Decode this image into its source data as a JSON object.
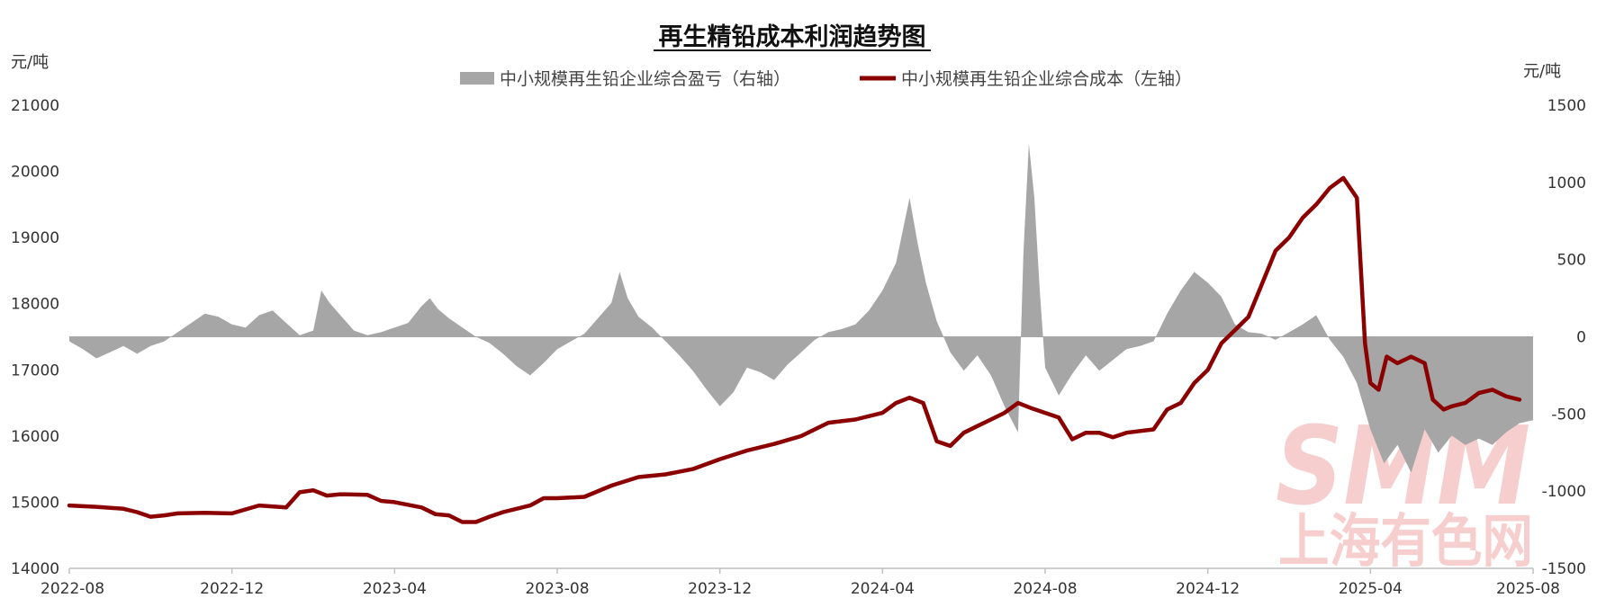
{
  "chart_data": {
    "type": "line+area",
    "title": "再生精铅成本利润趋势图",
    "left_unit": "元/吨",
    "right_unit": "元/吨",
    "x_ticks": [
      "2022-08",
      "2022-12",
      "2023-04",
      "2023-08",
      "2023-12",
      "2024-04",
      "2024-08",
      "2024-12",
      "2025-04",
      "2025-08"
    ],
    "left_axis": {
      "min": 14000,
      "max": 21000,
      "ticks": [
        "14000",
        "15000",
        "16000",
        "17000",
        "18000",
        "19000",
        "20000",
        "21000"
      ]
    },
    "right_axis": {
      "min": -1500,
      "max": 1500,
      "ticks": [
        "-1500",
        "-1000",
        "-500",
        "0",
        "500",
        "1000",
        "1500"
      ]
    },
    "grid": false,
    "legend_position": "top",
    "series": [
      {
        "name": "中小规模再生铅企业综合盈亏（右轴）",
        "kind": "area",
        "axis": "right",
        "color": "#a6a6a6",
        "points": [
          [
            0,
            -30
          ],
          [
            0.5,
            -80
          ],
          [
            1,
            -140
          ],
          [
            1.5,
            -100
          ],
          [
            2,
            -60
          ],
          [
            2.5,
            -110
          ],
          [
            3,
            -60
          ],
          [
            3.5,
            -30
          ],
          [
            4,
            30
          ],
          [
            4.5,
            90
          ],
          [
            5,
            150
          ],
          [
            5.5,
            130
          ],
          [
            6,
            80
          ],
          [
            6.5,
            60
          ],
          [
            7,
            140
          ],
          [
            7.5,
            170
          ],
          [
            8,
            90
          ],
          [
            8.5,
            10
          ],
          [
            9,
            40
          ],
          [
            9.3,
            300
          ],
          [
            9.6,
            220
          ],
          [
            10,
            140
          ],
          [
            10.5,
            40
          ],
          [
            11,
            10
          ],
          [
            11.5,
            30
          ],
          [
            12,
            60
          ],
          [
            12.5,
            90
          ],
          [
            13,
            200
          ],
          [
            13.3,
            250
          ],
          [
            13.6,
            180
          ],
          [
            14,
            120
          ],
          [
            14.5,
            60
          ],
          [
            15,
            0
          ],
          [
            15.5,
            -40
          ],
          [
            16,
            -110
          ],
          [
            16.5,
            -190
          ],
          [
            17,
            -250
          ],
          [
            17.5,
            -170
          ],
          [
            18,
            -80
          ],
          [
            18.5,
            -30
          ],
          [
            19,
            20
          ],
          [
            19.5,
            120
          ],
          [
            20,
            220
          ],
          [
            20.3,
            420
          ],
          [
            20.6,
            250
          ],
          [
            21,
            130
          ],
          [
            21.5,
            60
          ],
          [
            22,
            -30
          ],
          [
            22.5,
            -120
          ],
          [
            23,
            -220
          ],
          [
            23.5,
            -340
          ],
          [
            24,
            -450
          ],
          [
            24.5,
            -360
          ],
          [
            25,
            -200
          ],
          [
            25.5,
            -230
          ],
          [
            26,
            -280
          ],
          [
            26.5,
            -180
          ],
          [
            27,
            -100
          ],
          [
            27.5,
            -20
          ],
          [
            28,
            30
          ],
          [
            28.5,
            50
          ],
          [
            29,
            80
          ],
          [
            29.5,
            170
          ],
          [
            30,
            300
          ],
          [
            30.5,
            480
          ],
          [
            31,
            900
          ],
          [
            31.3,
            600
          ],
          [
            31.6,
            350
          ],
          [
            32,
            100
          ],
          [
            32.5,
            -100
          ],
          [
            33,
            -220
          ],
          [
            33.5,
            -120
          ],
          [
            34,
            -250
          ],
          [
            34.5,
            -450
          ],
          [
            35,
            -620
          ],
          [
            35.2,
            550
          ],
          [
            35.4,
            1250
          ],
          [
            35.6,
            900
          ],
          [
            35.8,
            300
          ],
          [
            36,
            -200
          ],
          [
            36.5,
            -380
          ],
          [
            37,
            -240
          ],
          [
            37.5,
            -120
          ],
          [
            38,
            -220
          ],
          [
            38.5,
            -150
          ],
          [
            39,
            -80
          ],
          [
            39.5,
            -60
          ],
          [
            40,
            -30
          ],
          [
            40.5,
            150
          ],
          [
            41,
            300
          ],
          [
            41.5,
            420
          ],
          [
            42,
            350
          ],
          [
            42.5,
            260
          ],
          [
            43,
            80
          ],
          [
            43.5,
            30
          ],
          [
            44,
            20
          ],
          [
            44.5,
            -20
          ],
          [
            45,
            30
          ],
          [
            45.5,
            80
          ],
          [
            46,
            140
          ],
          [
            46.5,
            -20
          ],
          [
            47,
            -130
          ],
          [
            47.5,
            -300
          ],
          [
            48,
            -600
          ],
          [
            48.5,
            -820
          ],
          [
            49,
            -700
          ],
          [
            49.5,
            -880
          ],
          [
            50,
            -600
          ],
          [
            50.5,
            -750
          ],
          [
            51,
            -640
          ],
          [
            51.5,
            -700
          ],
          [
            52,
            -660
          ],
          [
            52.5,
            -700
          ],
          [
            53,
            -620
          ],
          [
            53.5,
            -560
          ],
          [
            54,
            -540
          ]
        ]
      },
      {
        "name": "中小规模再生铅企业综合成本（左轴）",
        "kind": "line",
        "axis": "left",
        "color": "#8b0000",
        "points": [
          [
            0,
            14950
          ],
          [
            1,
            14930
          ],
          [
            2,
            14900
          ],
          [
            2.5,
            14850
          ],
          [
            3,
            14780
          ],
          [
            3.5,
            14800
          ],
          [
            4,
            14830
          ],
          [
            5,
            14840
          ],
          [
            6,
            14830
          ],
          [
            7,
            14950
          ],
          [
            8,
            14920
          ],
          [
            8.5,
            15150
          ],
          [
            9,
            15180
          ],
          [
            9.5,
            15100
          ],
          [
            10,
            15120
          ],
          [
            11,
            15110
          ],
          [
            11.5,
            15020
          ],
          [
            12,
            15000
          ],
          [
            13,
            14920
          ],
          [
            13.5,
            14820
          ],
          [
            14,
            14800
          ],
          [
            14.5,
            14700
          ],
          [
            15,
            14700
          ],
          [
            15.5,
            14780
          ],
          [
            16,
            14850
          ],
          [
            17,
            14950
          ],
          [
            17.5,
            15060
          ],
          [
            18,
            15060
          ],
          [
            19,
            15080
          ],
          [
            20,
            15250
          ],
          [
            21,
            15380
          ],
          [
            22,
            15420
          ],
          [
            23,
            15500
          ],
          [
            24,
            15650
          ],
          [
            25,
            15780
          ],
          [
            26,
            15880
          ],
          [
            27,
            16000
          ],
          [
            28,
            16200
          ],
          [
            29,
            16250
          ],
          [
            30,
            16350
          ],
          [
            30.5,
            16500
          ],
          [
            31,
            16580
          ],
          [
            31.5,
            16500
          ],
          [
            32,
            15920
          ],
          [
            32.5,
            15850
          ],
          [
            33,
            16050
          ],
          [
            33.5,
            16150
          ],
          [
            34,
            16250
          ],
          [
            34.5,
            16350
          ],
          [
            35,
            16500
          ],
          [
            35.5,
            16420
          ],
          [
            36,
            16350
          ],
          [
            36.5,
            16280
          ],
          [
            37,
            15950
          ],
          [
            37.5,
            16050
          ],
          [
            38,
            16050
          ],
          [
            38.5,
            15980
          ],
          [
            39,
            16050
          ],
          [
            40,
            16100
          ],
          [
            40.5,
            16400
          ],
          [
            41,
            16500
          ],
          [
            41.5,
            16800
          ],
          [
            42,
            17000
          ],
          [
            42.5,
            17400
          ],
          [
            43,
            17600
          ],
          [
            43.5,
            17800
          ],
          [
            44,
            18300
          ],
          [
            44.5,
            18800
          ],
          [
            45,
            19000
          ],
          [
            45.5,
            19300
          ],
          [
            46,
            19500
          ],
          [
            46.5,
            19750
          ],
          [
            47,
            19900
          ],
          [
            47.5,
            19600
          ],
          [
            47.8,
            17400
          ],
          [
            48,
            16800
          ],
          [
            48.3,
            16700
          ],
          [
            48.6,
            17200
          ],
          [
            49,
            17100
          ],
          [
            49.5,
            17200
          ],
          [
            50,
            17100
          ],
          [
            50.3,
            16550
          ],
          [
            50.7,
            16400
          ],
          [
            51,
            16450
          ],
          [
            51.5,
            16500
          ],
          [
            52,
            16650
          ],
          [
            52.5,
            16700
          ],
          [
            53,
            16600
          ],
          [
            53.5,
            16550
          ]
        ]
      }
    ]
  },
  "watermark": {
    "logo": "SMM",
    "name": "上海有色网"
  }
}
